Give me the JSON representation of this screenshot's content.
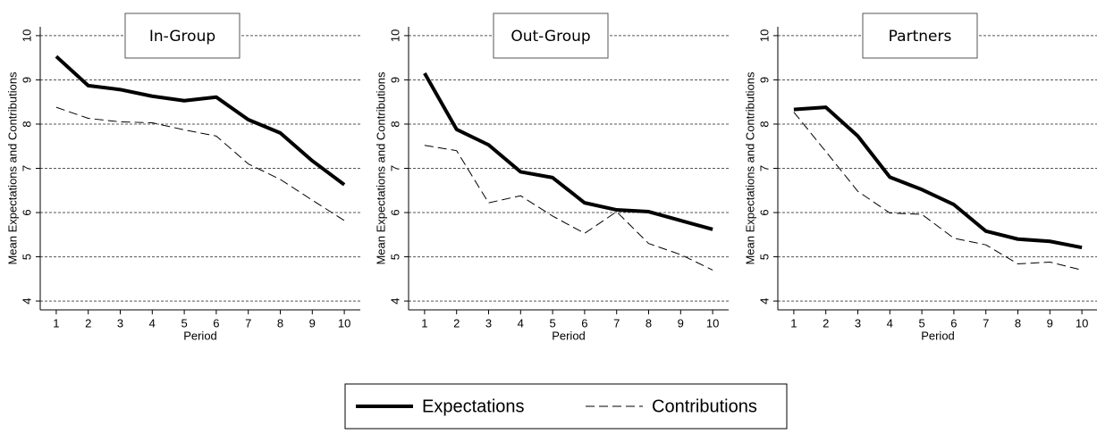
{
  "chart_data": [
    {
      "type": "line",
      "title": "In-Group",
      "x_label": "Period",
      "y_label": "Mean Expectations and Contributions",
      "x": [
        1,
        2,
        3,
        4,
        5,
        6,
        7,
        8,
        9,
        10
      ],
      "xlim": [
        0.5,
        10.5
      ],
      "xticks": [
        1,
        2,
        3,
        4,
        5,
        6,
        7,
        8,
        9,
        10
      ],
      "ylim": [
        3.8,
        10.2
      ],
      "yticks": [
        4,
        5,
        6,
        7,
        8,
        9,
        10
      ],
      "grid": true,
      "series": [
        {
          "name": "Expectations",
          "color": "#000000",
          "style": "solid",
          "values": [
            9.53,
            8.87,
            8.78,
            8.63,
            8.53,
            8.61,
            8.1,
            7.8,
            7.17,
            6.63
          ]
        },
        {
          "name": "Contributions",
          "color": "#000000",
          "style": "dashed",
          "values": [
            8.38,
            8.13,
            8.05,
            8.03,
            7.87,
            7.73,
            7.1,
            6.75,
            6.28,
            5.82
          ]
        }
      ]
    },
    {
      "type": "line",
      "title": "Out-Group",
      "x_label": "Period",
      "y_label": "Mean Expectations and Contributions",
      "x": [
        1,
        2,
        3,
        4,
        5,
        6,
        7,
        8,
        9,
        10
      ],
      "xlim": [
        0.5,
        10.5
      ],
      "xticks": [
        1,
        2,
        3,
        4,
        5,
        6,
        7,
        8,
        9,
        10
      ],
      "ylim": [
        3.8,
        10.2
      ],
      "yticks": [
        4,
        5,
        6,
        7,
        8,
        9,
        10
      ],
      "grid": true,
      "series": [
        {
          "color": "#000000",
          "style": "solid",
          "values": [
            9.15,
            7.88,
            7.53,
            6.92,
            6.79,
            6.22,
            6.06,
            6.02,
            5.82,
            5.62
          ]
        },
        {
          "color": "#000000",
          "style": "dashed",
          "values": [
            7.52,
            7.4,
            6.22,
            6.38,
            5.92,
            5.53,
            6.02,
            5.3,
            5.05,
            4.7
          ]
        }
      ]
    },
    {
      "type": "line",
      "title": "Partners",
      "x_label": "Period",
      "y_label": "Mean Expectations and Contributions",
      "x": [
        1,
        2,
        3,
        4,
        5,
        6,
        7,
        8,
        9,
        10
      ],
      "xlim": [
        0.5,
        10.5
      ],
      "xticks": [
        1,
        2,
        3,
        4,
        5,
        6,
        7,
        8,
        9,
        10
      ],
      "ylim": [
        3.8,
        10.2
      ],
      "yticks": [
        4,
        5,
        6,
        7,
        8,
        9,
        10
      ],
      "grid": true,
      "series": [
        {
          "color": "#000000",
          "style": "solid",
          "values": [
            8.33,
            8.38,
            7.73,
            6.8,
            6.52,
            6.18,
            5.58,
            5.4,
            5.35,
            5.21
          ]
        },
        {
          "color": "#000000",
          "style": "dashed",
          "values": [
            8.27,
            7.38,
            6.48,
            5.99,
            5.96,
            5.42,
            5.27,
            4.84,
            4.88,
            4.7
          ]
        }
      ]
    }
  ]
}
